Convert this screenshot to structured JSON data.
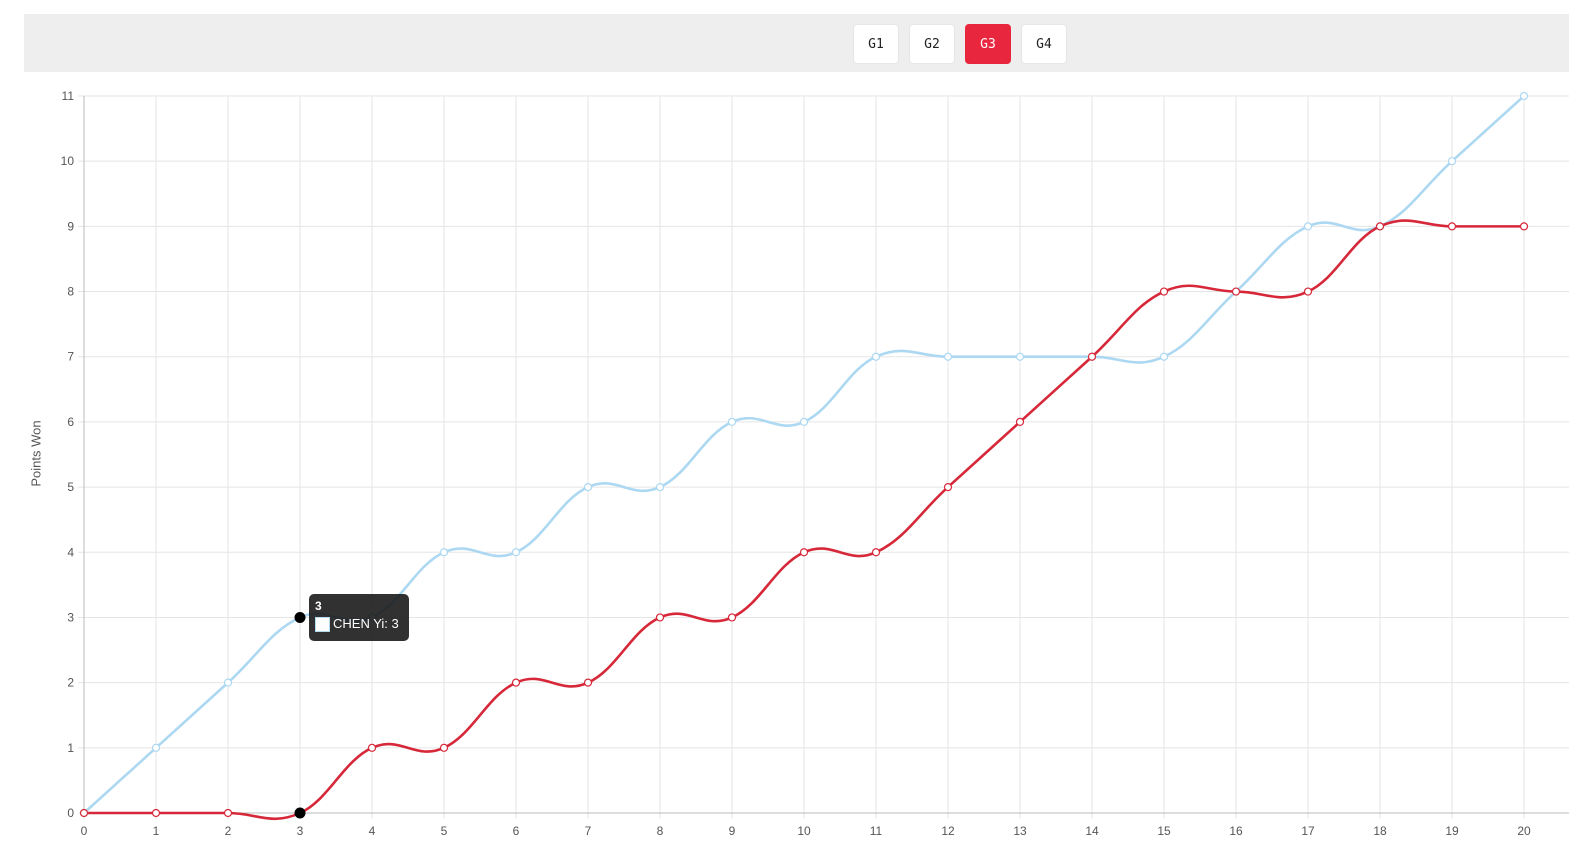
{
  "tabs": [
    {
      "label": "G1",
      "active": false
    },
    {
      "label": "G2",
      "active": false
    },
    {
      "label": "G3",
      "active": true
    },
    {
      "label": "G4",
      "active": false
    }
  ],
  "colors": {
    "accent": "#e8273f",
    "series_blue": "#acd8f2",
    "series_red": "#d62839",
    "grid": "#e5e5e5"
  },
  "tooltip": {
    "title": "3",
    "series_name": "CHEN Yi",
    "value": "3",
    "line": "CHEN Yi: 3"
  },
  "chart_data": {
    "type": "line",
    "ylabel": "Points Won",
    "xlabel": "",
    "title": "",
    "x": [
      0,
      1,
      2,
      3,
      4,
      5,
      6,
      7,
      8,
      9,
      10,
      11,
      12,
      13,
      14,
      15,
      16,
      17,
      18,
      19,
      20
    ],
    "xlim": [
      0,
      20
    ],
    "ylim": [
      0,
      11
    ],
    "grid": true,
    "series": [
      {
        "name": "CHEN Yi",
        "color": "#acd8f2",
        "values": [
          0,
          1,
          2,
          3,
          3,
          4,
          4,
          5,
          5,
          6,
          6,
          7,
          7,
          7,
          7,
          7,
          8,
          9,
          9,
          10,
          11
        ]
      },
      {
        "color": "#d62839",
        "values": [
          0,
          0,
          0,
          0,
          1,
          1,
          2,
          2,
          3,
          3,
          4,
          4,
          5,
          6,
          7,
          8,
          8,
          8,
          9,
          9,
          9
        ]
      }
    ],
    "highlight_index": 3
  }
}
